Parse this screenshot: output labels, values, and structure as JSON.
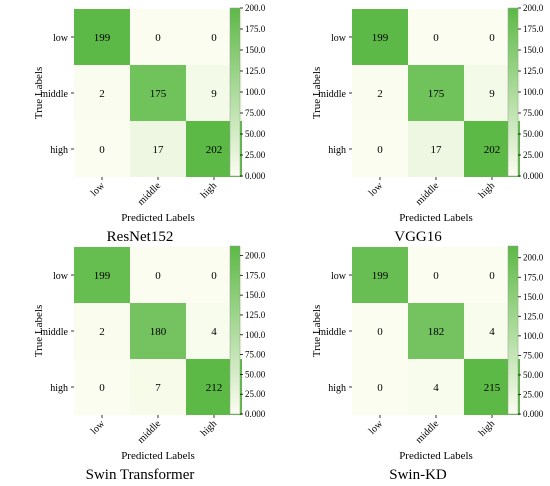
{
  "figure": {
    "panels": [
      {
        "caption": "ResNet152"
      },
      {
        "caption": "VGG16"
      },
      {
        "caption": "Swin Transformer"
      },
      {
        "caption": "Swin-KD"
      }
    ]
  },
  "colors": {
    "low": "#fbfdf0",
    "high": "#5cb946"
  },
  "chart_data": [
    {
      "type": "heatmap",
      "title": "ResNet152",
      "xlabel": "Predicted Labels",
      "ylabel": "True Labels",
      "x_categories": [
        "low",
        "middle",
        "high"
      ],
      "y_categories": [
        "low",
        "middle",
        "high"
      ],
      "values": [
        [
          199,
          0,
          0
        ],
        [
          2,
          175,
          9
        ],
        [
          0,
          17,
          202
        ]
      ],
      "colorbar": {
        "min": 0,
        "max": 200,
        "ticks": [
          "0.000",
          "25.00",
          "50.00",
          "75.00",
          "100.0",
          "125.0",
          "150.0",
          "175.0",
          "200.0"
        ]
      }
    },
    {
      "type": "heatmap",
      "title": "VGG16",
      "xlabel": "Predicted Labels",
      "ylabel": "True Labels",
      "x_categories": [
        "low",
        "middle",
        "high"
      ],
      "y_categories": [
        "low",
        "middle",
        "high"
      ],
      "values": [
        [
          199,
          0,
          0
        ],
        [
          2,
          175,
          9
        ],
        [
          0,
          17,
          202
        ]
      ],
      "colorbar": {
        "min": 0,
        "max": 200,
        "ticks": [
          "0.000",
          "25.00",
          "50.00",
          "75.00",
          "100.0",
          "125.0",
          "150.0",
          "175.0",
          "200.0"
        ]
      }
    },
    {
      "type": "heatmap",
      "title": "Swin Transformer",
      "xlabel": "Predicted Labels",
      "ylabel": "True Labels",
      "x_categories": [
        "low",
        "middle",
        "high"
      ],
      "y_categories": [
        "low",
        "middle",
        "high"
      ],
      "values": [
        [
          199,
          0,
          0
        ],
        [
          2,
          180,
          4
        ],
        [
          0,
          7,
          212
        ]
      ],
      "colorbar": {
        "min": 0,
        "max": 212,
        "ticks": [
          "0.000",
          "25.00",
          "50.00",
          "75.00",
          "100.0",
          "125.0",
          "150.0",
          "175.0",
          "200.0"
        ]
      }
    },
    {
      "type": "heatmap",
      "title": "Swin-KD",
      "xlabel": "Predicted Labels",
      "ylabel": "True Labels",
      "x_categories": [
        "low",
        "middle",
        "high"
      ],
      "y_categories": [
        "low",
        "middle",
        "high"
      ],
      "values": [
        [
          199,
          0,
          0
        ],
        [
          0,
          182,
          4
        ],
        [
          0,
          4,
          215
        ]
      ],
      "colorbar": {
        "min": 0,
        "max": 215,
        "ticks": [
          "0.000",
          "25.00",
          "50.00",
          "75.00",
          "100.0",
          "125.0",
          "150.0",
          "175.0",
          "200.0"
        ]
      }
    }
  ]
}
